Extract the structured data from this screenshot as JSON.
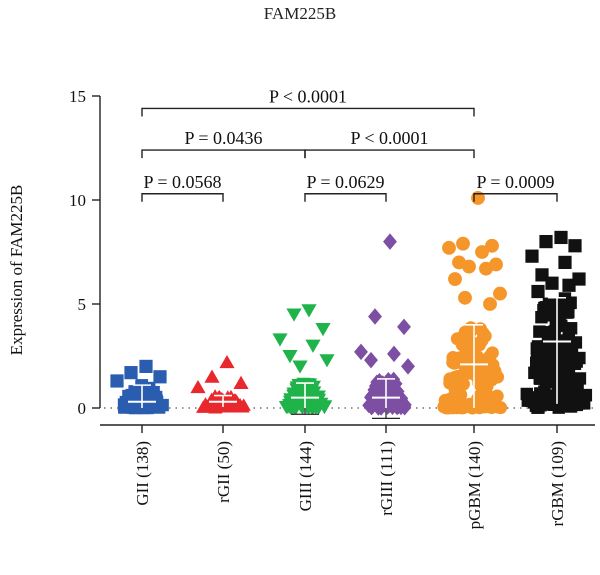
{
  "chart_data": {
    "type": "scatter",
    "title": "FAM225B",
    "ylabel": "Expression of FAM225B",
    "ylim": [
      0,
      15
    ],
    "yticks": [
      0,
      5,
      10,
      15
    ],
    "zero_reference_line": "dotted",
    "groups": [
      {
        "label": "GII (138)",
        "color": "#2a5db0",
        "marker": "square",
        "median": 0.3,
        "whisker": [
          0.0,
          1.1
        ],
        "outliers": [
          2.0,
          1.7,
          1.5,
          1.3
        ]
      },
      {
        "label": "rGII (50)",
        "color": "#e8282d",
        "marker": "triangle-up",
        "median": 0.3,
        "whisker": [
          0.05,
          0.6
        ],
        "outliers": [
          2.2,
          1.5,
          1.2,
          1.0
        ]
      },
      {
        "label": "GIII (144)",
        "color": "#1fb34a",
        "marker": "triangle-down",
        "median": 0.5,
        "whisker": [
          -0.3,
          1.2
        ],
        "outliers": [
          4.7,
          4.5,
          3.8,
          3.3,
          3.0,
          2.5,
          2.3,
          2.0
        ]
      },
      {
        "label": "rGIII (111)",
        "color": "#7d4fa3",
        "marker": "diamond",
        "median": 0.5,
        "whisker": [
          -0.5,
          1.4
        ],
        "outliers": [
          8.0,
          4.4,
          3.9,
          2.7,
          2.6,
          2.3,
          2.0
        ]
      },
      {
        "label": "pGBM (140)",
        "color": "#f5962a",
        "marker": "circle",
        "median": 2.1,
        "whisker": [
          0.0,
          4.0
        ],
        "outliers": [
          10.1,
          7.9,
          7.8,
          7.7,
          7.5,
          7.0,
          6.9,
          6.8,
          6.7,
          6.2,
          5.5,
          5.3,
          5.0
        ]
      },
      {
        "label": "rGBM (109)",
        "color": "#111111",
        "marker": "square",
        "median": 3.2,
        "whisker": [
          0.2,
          5.3
        ],
        "outliers": [
          8.2,
          8.0,
          7.8,
          7.3,
          7.0,
          6.4,
          6.2,
          6.0,
          5.9,
          5.6
        ]
      }
    ],
    "comparisons": [
      {
        "from": 0,
        "to": 4,
        "y": 14.4,
        "text": "P < 0.0001"
      },
      {
        "from": 0,
        "to": 2,
        "y": 12.4,
        "text": "P = 0.0436"
      },
      {
        "from": 2,
        "to": 4,
        "y": 12.4,
        "text": "P < 0.0001"
      },
      {
        "from": 0,
        "to": 1,
        "y": 10.3,
        "text": "P = 0.0568"
      },
      {
        "from": 2,
        "to": 3,
        "y": 10.3,
        "text": "P = 0.0629"
      },
      {
        "from": 4,
        "to": 5,
        "y": 10.3,
        "text": "P = 0.0009"
      }
    ]
  }
}
